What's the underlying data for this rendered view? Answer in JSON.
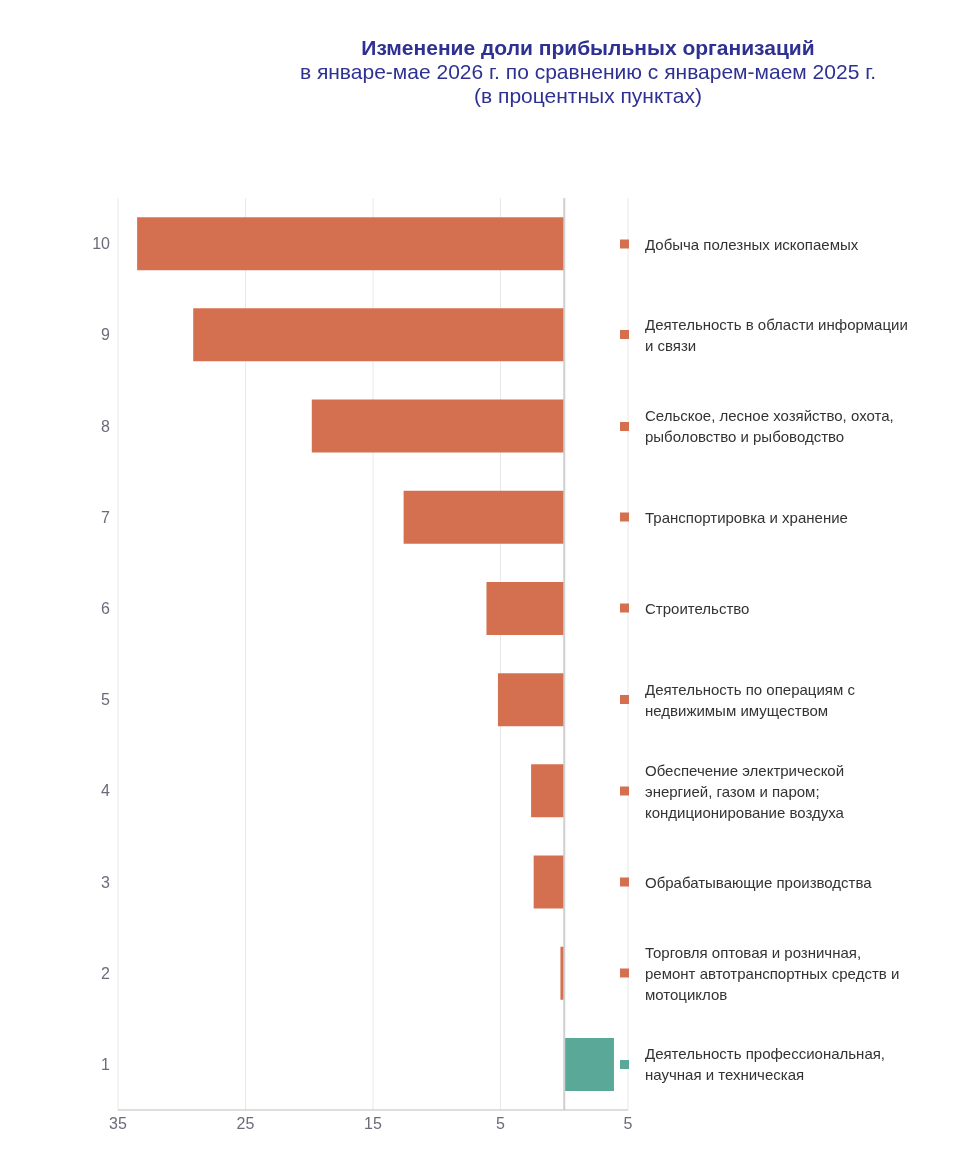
{
  "chart_data": {
    "type": "bar",
    "orientation": "horizontal",
    "title": "Изменение доли прибыльных организаций",
    "subtitle": "в январе-мае 2026 г. по сравнению с январем-маем 2025 г.\n(в процентных пунктах)",
    "categories": [
      "10",
      "9",
      "8",
      "7",
      "6",
      "5",
      "4",
      "3",
      "2",
      "1"
    ],
    "values": [
      -33.5,
      -29.1,
      -19.8,
      -12.6,
      -6.1,
      -5.2,
      -2.6,
      -2.4,
      -0.3,
      3.9
    ],
    "colors": [
      "#d4704f",
      "#d4704f",
      "#d4704f",
      "#d4704f",
      "#d4704f",
      "#d4704f",
      "#d4704f",
      "#d4704f",
      "#d4704f",
      "#5aa898"
    ],
    "xlim": [
      -35,
      5
    ],
    "xticks": [
      {
        "value": -35,
        "label": "35"
      },
      {
        "value": -25,
        "label": "25"
      },
      {
        "value": -15,
        "label": "15"
      },
      {
        "value": -5,
        "label": "5"
      },
      5
    ],
    "grid": "x",
    "ref_lines": [
      {
        "axis": "x",
        "value": 0,
        "color": "#cfcfcf"
      }
    ],
    "annotations": [
      "Добыча полезных ископаемых",
      "Деятельность в области информации и связи",
      "Сельское, лесное хозяйство, охота, рыболовство и рыбоводство",
      "Транспортировка и хранение",
      "Строительство",
      "Деятельность по операциям с недвижимым имуществом",
      "Обеспечение электрической энергией, газом и паром; кондиционирование воздуха",
      "Обрабатывающие производства",
      "Торговля оптовая и розничная, ремонт автотранспортных средств и мотоциклов",
      "Деятельность профессиональная, научная и техническая"
    ]
  }
}
